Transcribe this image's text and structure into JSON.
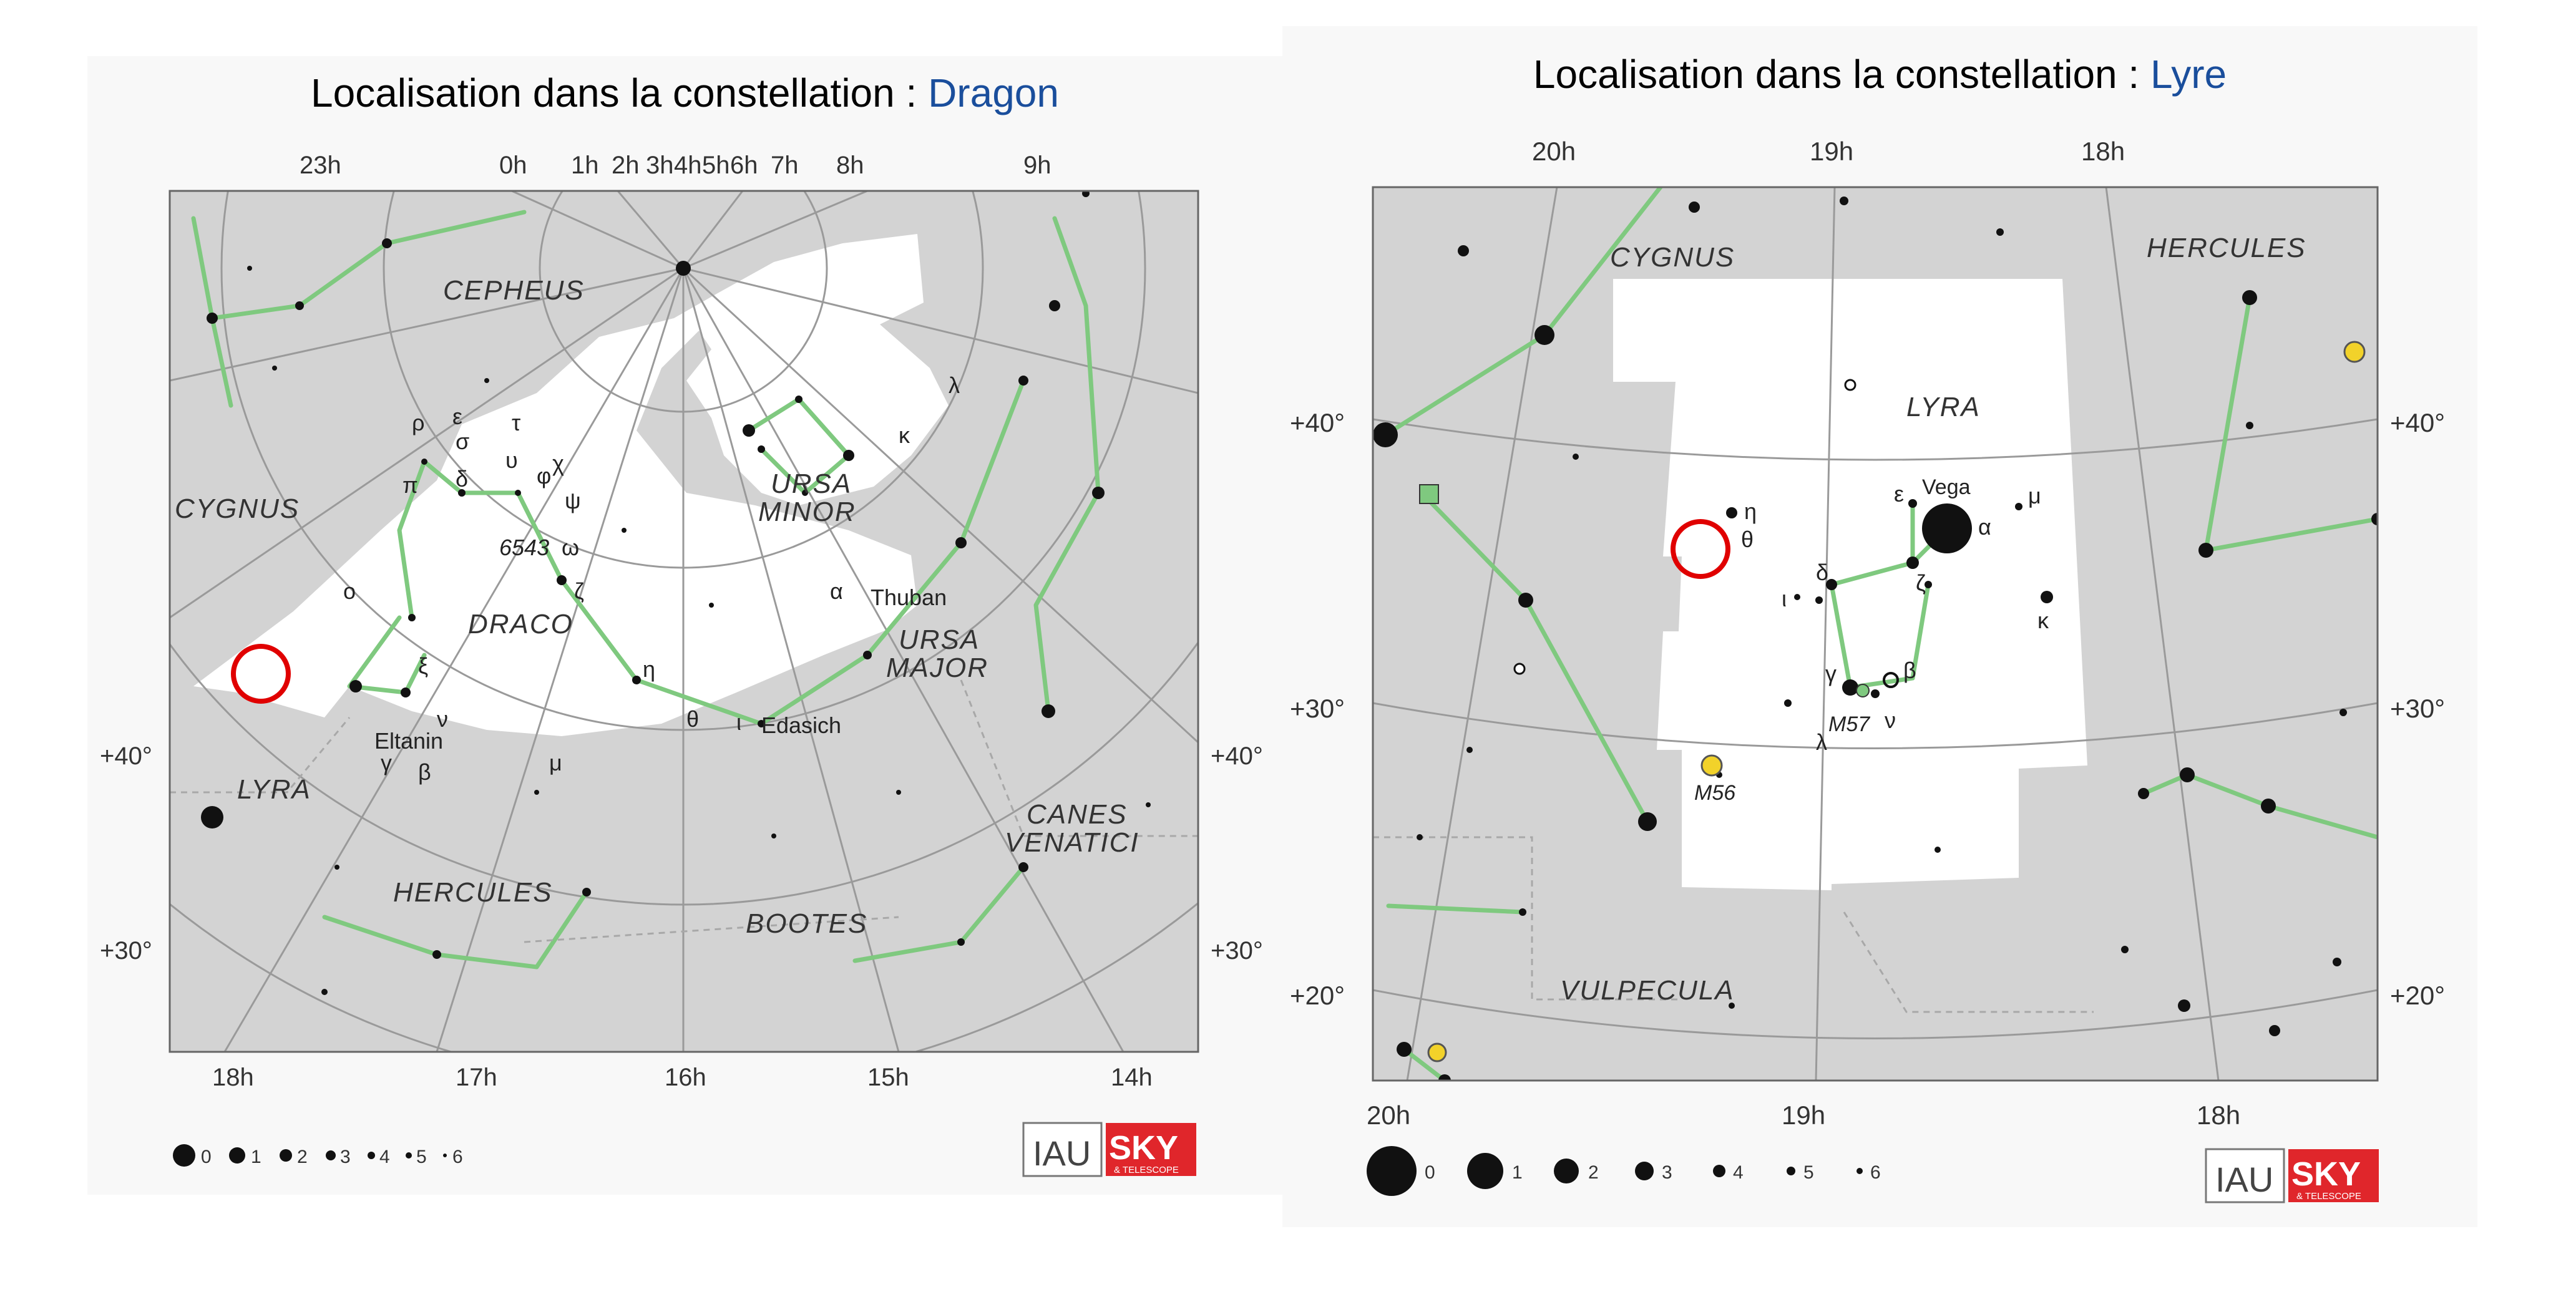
{
  "panels": [
    {
      "title_prefix": "Localisation dans la constellation : ",
      "title_link": "Dragon",
      "ra_top_labels": [
        "23h",
        "0h",
        "1h",
        "2h",
        "3h",
        "4h",
        "5h",
        "6h",
        "7h",
        "8h",
        "9h"
      ],
      "ra_bottom_labels": [
        "18h",
        "17h",
        "16h",
        "15h",
        "14h"
      ],
      "dec_labels": [
        "+40°",
        "+30°"
      ],
      "constellations": [
        "CEPHEUS",
        "CYGNUS",
        "URSA",
        "MINOR",
        "DRACO",
        "URSA",
        "MAJOR",
        "LYRA",
        "HERCULES",
        "BOOTES",
        "CANES",
        "VENATICI"
      ],
      "star_labels": [
        "Thuban",
        "Eltanin",
        "Edasich",
        "6543"
      ],
      "greek_labels": [
        "ρ",
        "ε",
        "σ",
        "τ",
        "π",
        "δ",
        "υ",
        "φ",
        "χ",
        "ψ",
        "ω",
        "ο",
        "ζ",
        "ξ",
        "ν",
        "γ",
        "β",
        "η",
        "θ",
        "ι",
        "μ",
        "α",
        "κ",
        "λ"
      ],
      "magnitude_scale": [
        "0",
        "1",
        "2",
        "3",
        "4",
        "5",
        "6"
      ],
      "logos": {
        "iau": "IAU",
        "sky": "SKY",
        "sky_sub": "& TELESCOPE"
      }
    },
    {
      "title_prefix": "Localisation dans la constellation : ",
      "title_link": "Lyre",
      "ra_top_labels": [
        "20h",
        "19h",
        "18h"
      ],
      "ra_bottom_labels": [
        "20h",
        "19h",
        "18h"
      ],
      "dec_labels": [
        "+40°",
        "+30°",
        "+20°"
      ],
      "constellations": [
        "CYGNUS",
        "HERCULES",
        "LYRA",
        "VULPECULA"
      ],
      "star_labels": [
        "Vega",
        "M57",
        "M56"
      ],
      "greek_labels": [
        "η",
        "θ",
        "ε",
        "α",
        "μ",
        "δ",
        "ζ",
        "ι",
        "κ",
        "γ",
        "β",
        "ν",
        "λ"
      ],
      "magnitude_scale": [
        "0",
        "1",
        "2",
        "3",
        "4",
        "5",
        "6"
      ],
      "logos": {
        "iau": "IAU",
        "sky": "SKY",
        "sky_sub": "& TELESCOPE"
      }
    }
  ],
  "colors": {
    "title_link": "#1a4e9c",
    "marker": "#e00000",
    "constellation_line": "#7fc97f",
    "outside_area": "#d3d3d3",
    "inside_area": "#ffffff"
  }
}
